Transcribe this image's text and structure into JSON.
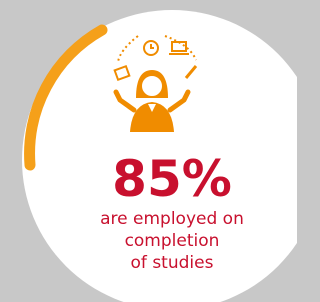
{
  "stat": {
    "value": "85%",
    "caption": [
      "are employed on",
      "completion",
      "of studies"
    ]
  }
}
